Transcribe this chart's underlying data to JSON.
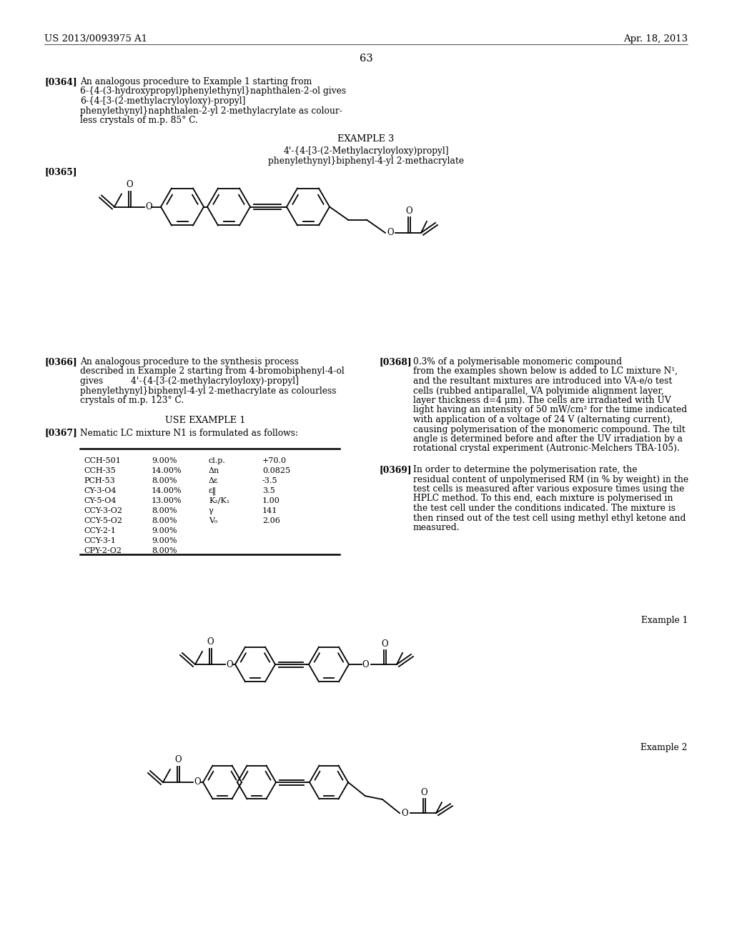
{
  "page_header_left": "US 2013/0093975 A1",
  "page_header_right": "Apr. 18, 2013",
  "page_number": "63",
  "background_color": "#ffffff",
  "text_color": "#000000",
  "para_0364_bold": "[0364]",
  "para_0364_lines": [
    "An analogous procedure to Example 1 starting from",
    "6-{4-(3-hydroxypropyl)phenylethynyl}naphthalen-2-ol gives",
    "6-{4-[3-(2-methylacryloyloxy)-propyl]",
    "phenylethynyl}naphthalen-2-yl 2-methylacrylate as colour-",
    "less crystals of m.p. 85° C."
  ],
  "example3_heading": "EXAMPLE 3",
  "example3_name_line1": "4'-{4-[3-(2-Methylacryloyloxy)propyl]",
  "example3_name_line2": "phenylethynyl}biphenyl-4-yl 2-methacrylate",
  "para_0365_bold": "[0365]",
  "para_0366_bold": "[0366]",
  "para_0366_lines": [
    "An analogous procedure to the synthesis process",
    "described in Example 2 starting from 4-bromobiphenyl-4-ol",
    "gives          4'-{4-[3-(2-methylacryloyloxy)-propyl]",
    "phenylethynyl}biphenyl-4-yl 2-methacrylate as colourless",
    "crystals of m.p. 123° C."
  ],
  "use_example_heading": "USE EXAMPLE 1",
  "para_0367_bold": "[0367]",
  "para_0367_text": "Nematic LC mixture N1 is formulated as follows:",
  "table_compounds": [
    "CCH-501",
    "CCH-35",
    "PCH-53",
    "CY-3-O4",
    "CY-5-O4",
    "CCY-3-O2",
    "CCY-5-O2",
    "CCY-2-1",
    "CCY-3-1",
    "CPY-2-O2"
  ],
  "table_percentages": [
    "9.00%",
    "14.00%",
    "8.00%",
    "14.00%",
    "13.00%",
    "8.00%",
    "8.00%",
    "9.00%",
    "9.00%",
    "8.00%"
  ],
  "table_props": [
    "cl.p.",
    "Δn",
    "Δε",
    "ε‖",
    "K₂/K₁",
    "γ",
    "V₀",
    "",
    "",
    ""
  ],
  "table_values": [
    "+70.0",
    "0.0825",
    "-3.5",
    "3.5",
    "1.00",
    "141",
    "2.06",
    "",
    "",
    ""
  ],
  "para_0368_bold": "[0368]",
  "para_0368_lines": [
    "0.3% of a polymerisable monomeric compound",
    "from the examples shown below is added to LC mixture N¹,",
    "and the resultant mixtures are introduced into VA-e/o test",
    "cells (rubbed antiparallel, VA polyimide alignment layer,",
    "layer thickness d=4 μm). The cells are irradiated with UV",
    "light having an intensity of 50 mW/cm² for the time indicated",
    "with application of a voltage of 24 V (alternating current),",
    "causing polymerisation of the monomeric compound. The tilt",
    "angle is determined before and after the UV irradiation by a",
    "rotational crystal experiment (Autronic-Melchers TBA-105)."
  ],
  "para_0369_bold": "[0369]",
  "para_0369_lines": [
    "In order to determine the polymerisation rate, the",
    "residual content of unpolymerised RM (in % by weight) in the",
    "test cells is measured after various exposure times using the",
    "HPLC method. To this end, each mixture is polymerised in",
    "the test cell under the conditions indicated. The mixture is",
    "then rinsed out of the test cell using methyl ethyl ketone and",
    "measured."
  ],
  "example_label_1": "Example 1",
  "example_label_2": "Example 2"
}
